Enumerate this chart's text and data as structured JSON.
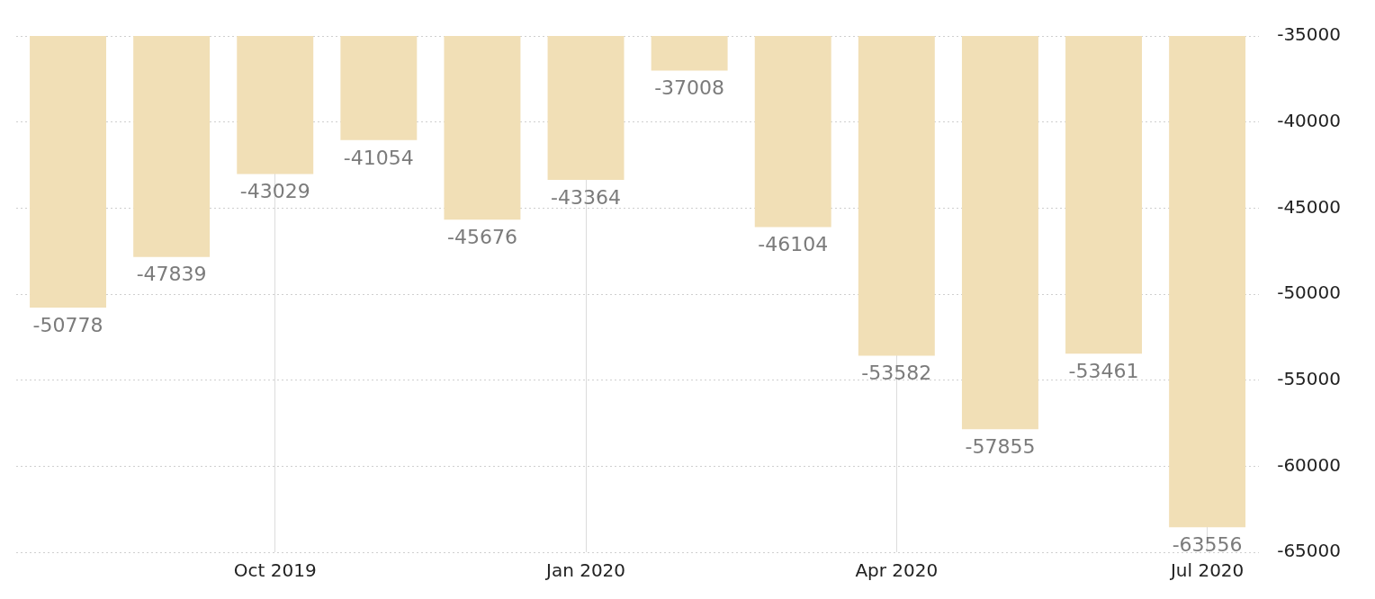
{
  "chart_data": {
    "type": "bar",
    "categories": [
      null,
      null,
      "Oct 2019",
      null,
      null,
      "Jan 2020",
      null,
      null,
      "Apr 2020",
      null,
      null,
      "Jul 2020"
    ],
    "series": [
      {
        "color": "#f1dfb6",
        "values": [
          -50778,
          -47839,
          -43029,
          -41054,
          -45676,
          -43364,
          -37008,
          -46104,
          -53582,
          -57855,
          -53461,
          -63556
        ]
      }
    ],
    "ylim": [
      -65000,
      -35000
    ],
    "yticks": [
      -65000,
      -60000,
      -55000,
      -50000,
      -45000,
      -40000,
      -35000
    ],
    "grid": true,
    "legend": false,
    "data_labels": true
  }
}
